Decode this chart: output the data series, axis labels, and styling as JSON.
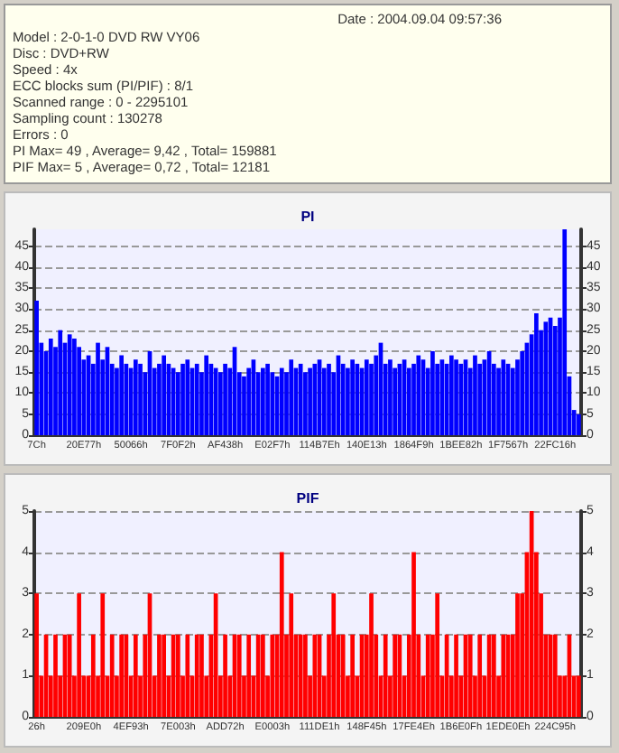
{
  "chart_data": [
    {
      "type": "other",
      "annotations": [
        "Date : 2004.09.04 09:57:36",
        "Model : 2-0-1-0 DVD RW VY06",
        "Disc : DVD+RW",
        "Speed : 4x",
        "ECC blocks sum (PI/PIF) : 8/1",
        "Scanned range : 0 - 2295101",
        "Sampling count : 130278",
        "Errors : 0",
        "PI Max= 49 , Average= 9,42 , Total= 159881",
        "PIF Max= 5 , Average= 0,72 , Total= 12181"
      ]
    },
    {
      "type": "bar",
      "title": "PI",
      "categories": [
        "7Ch",
        null,
        null,
        null,
        null,
        null,
        null,
        null,
        null,
        null,
        "20E77h",
        null,
        null,
        null,
        null,
        null,
        null,
        null,
        null,
        null,
        "50066h",
        null,
        null,
        null,
        null,
        null,
        null,
        null,
        null,
        null,
        "7F0F2h",
        null,
        null,
        null,
        null,
        null,
        null,
        null,
        null,
        null,
        "AF438h",
        null,
        null,
        null,
        null,
        null,
        null,
        null,
        null,
        null,
        "E02F7h",
        null,
        null,
        null,
        null,
        null,
        null,
        null,
        null,
        null,
        "114B7Eh",
        null,
        null,
        null,
        null,
        null,
        null,
        null,
        null,
        null,
        "140E13h",
        null,
        null,
        null,
        null,
        null,
        null,
        null,
        null,
        null,
        "1864F9h",
        null,
        null,
        null,
        null,
        null,
        null,
        null,
        null,
        null,
        "1BEE82h",
        null,
        null,
        null,
        null,
        null,
        null,
        null,
        null,
        null,
        "1F7567h",
        null,
        null,
        null,
        null,
        null,
        null,
        null,
        null,
        null,
        "22FC16h",
        null,
        null,
        null,
        null,
        null
      ],
      "values": [
        32,
        22,
        20,
        23,
        21,
        25,
        22,
        24,
        23,
        21,
        18,
        19,
        17,
        22,
        18,
        21,
        17,
        16,
        19,
        17,
        16,
        18,
        17,
        15,
        20,
        16,
        17,
        19,
        17,
        16,
        15,
        17,
        18,
        16,
        17,
        15,
        19,
        17,
        16,
        15,
        17,
        16,
        21,
        15,
        14,
        16,
        18,
        15,
        16,
        17,
        15,
        14,
        16,
        15,
        18,
        16,
        17,
        15,
        16,
        17,
        18,
        16,
        17,
        15,
        19,
        17,
        16,
        18,
        17,
        16,
        18,
        17,
        19,
        22,
        17,
        18,
        16,
        17,
        18,
        16,
        17,
        19,
        18,
        16,
        20,
        17,
        18,
        17,
        19,
        18,
        17,
        18,
        16,
        19,
        17,
        18,
        20,
        17,
        16,
        18,
        17,
        16,
        18,
        20,
        22,
        24,
        29,
        25,
        27,
        28,
        26,
        28,
        49,
        14,
        6,
        5
      ],
      "color": "#0000ff",
      "ylim": [
        0,
        49
      ],
      "yticks": [
        0,
        5,
        10,
        15,
        20,
        25,
        30,
        35,
        40,
        45
      ],
      "y2lim": [
        0,
        49
      ],
      "y2ticks": [
        0,
        5,
        10,
        15,
        20,
        25,
        30,
        35,
        40,
        45
      ],
      "grid": "y"
    },
    {
      "type": "bar",
      "title": "PIF",
      "categories": [
        "26h",
        null,
        null,
        null,
        null,
        null,
        null,
        null,
        null,
        null,
        "209E0h",
        null,
        null,
        null,
        null,
        null,
        null,
        null,
        null,
        null,
        "4EF93h",
        null,
        null,
        null,
        null,
        null,
        null,
        null,
        null,
        null,
        "7E003h",
        null,
        null,
        null,
        null,
        null,
        null,
        null,
        null,
        null,
        "ADD72h",
        null,
        null,
        null,
        null,
        null,
        null,
        null,
        null,
        null,
        "E0003h",
        null,
        null,
        null,
        null,
        null,
        null,
        null,
        null,
        null,
        "111DE1h",
        null,
        null,
        null,
        null,
        null,
        null,
        null,
        null,
        null,
        "148F45h",
        null,
        null,
        null,
        null,
        null,
        null,
        null,
        null,
        null,
        "17FE4Eh",
        null,
        null,
        null,
        null,
        null,
        null,
        null,
        null,
        null,
        "1B6E0Fh",
        null,
        null,
        null,
        null,
        null,
        null,
        null,
        null,
        null,
        "1EDE0Eh",
        null,
        null,
        null,
        null,
        null,
        null,
        null,
        null,
        null,
        "224C95h",
        null,
        null,
        null,
        null,
        null
      ],
      "values": [
        3,
        1,
        2,
        1,
        2,
        1,
        2,
        2,
        1,
        3,
        1,
        1,
        2,
        1,
        3,
        1,
        2,
        1,
        2,
        2,
        1,
        2,
        1,
        2,
        3,
        1,
        2,
        2,
        1,
        2,
        2,
        1,
        2,
        1,
        2,
        2,
        1,
        2,
        3,
        1,
        2,
        1,
        2,
        2,
        1,
        2,
        1,
        2,
        2,
        1,
        2,
        2,
        4,
        2,
        3,
        2,
        2,
        2,
        1,
        2,
        2,
        1,
        2,
        3,
        2,
        2,
        1,
        2,
        1,
        2,
        2,
        3,
        2,
        1,
        2,
        1,
        2,
        2,
        1,
        2,
        4,
        2,
        1,
        2,
        2,
        3,
        1,
        2,
        1,
        2,
        1,
        2,
        2,
        1,
        2,
        1,
        2,
        2,
        1,
        2,
        2,
        2,
        3,
        3,
        4,
        5,
        4,
        3,
        2,
        2,
        2,
        1,
        1,
        2,
        1,
        1
      ],
      "color": "#ff0000",
      "ylim": [
        0,
        5
      ],
      "yticks": [
        0,
        1,
        2,
        3,
        4,
        5
      ],
      "y2lim": [
        0,
        5
      ],
      "y2ticks": [
        0,
        1,
        2,
        3,
        4,
        5
      ],
      "grid": "y"
    }
  ]
}
